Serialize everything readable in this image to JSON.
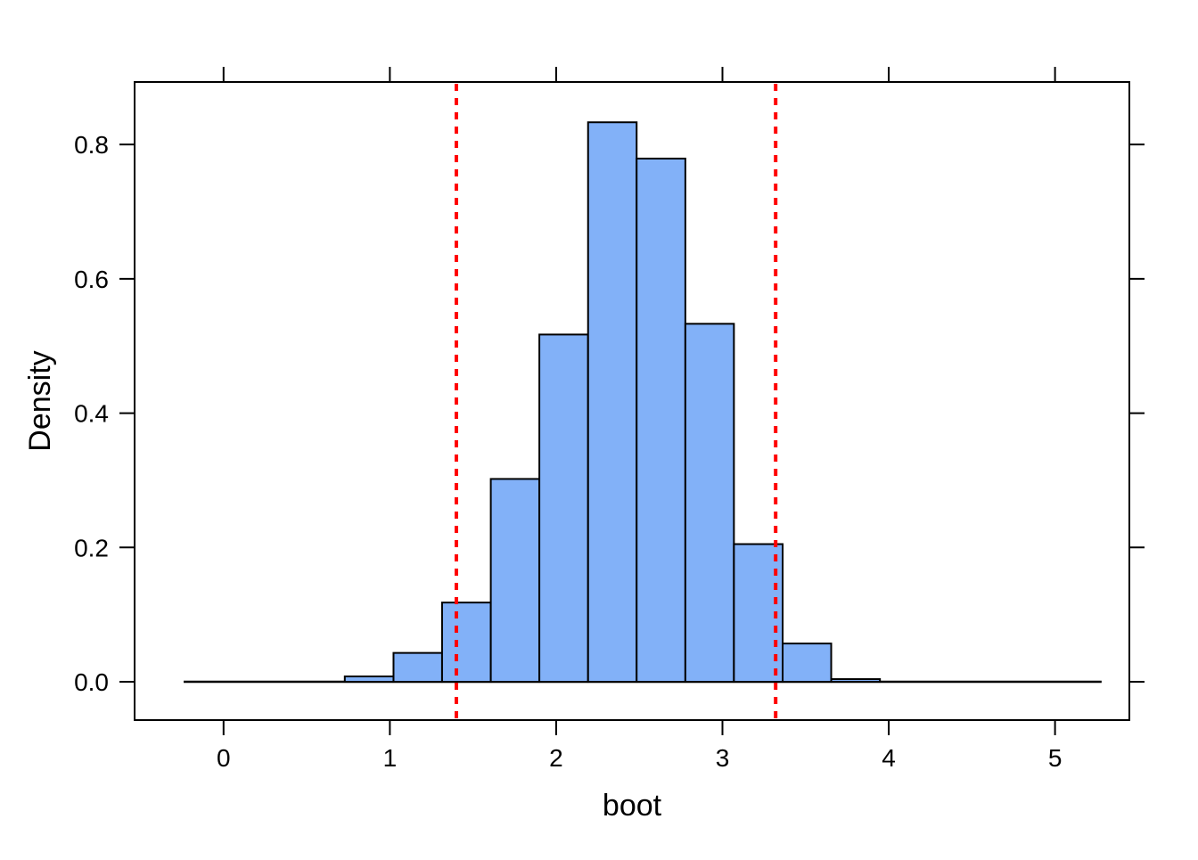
{
  "figure": {
    "background": "#ffffff"
  },
  "chart_data": {
    "type": "bar",
    "subtype": "histogram",
    "title": "",
    "xlabel": "boot",
    "ylabel": "Density",
    "grid": false,
    "legend": null,
    "x_axis": {
      "range": [
        -0.535,
        5.447
      ],
      "tick_values": [
        0,
        1,
        2,
        3,
        4,
        5
      ],
      "tick_labels": [
        "0",
        "1",
        "2",
        "3",
        "4",
        "5"
      ],
      "mirrored_ticks_top": true
    },
    "y_axis": {
      "range": [
        -0.057,
        0.893
      ],
      "tick_values": [
        0.0,
        0.2,
        0.4,
        0.6,
        0.8
      ],
      "tick_labels": [
        "0.0",
        "0.2",
        "0.4",
        "0.6",
        "0.8"
      ],
      "mirrored_ticks_right": true
    },
    "bins": {
      "breaks": [
        0.729,
        1.022,
        1.314,
        1.607,
        1.899,
        2.192,
        2.484,
        2.777,
        3.069,
        3.362,
        3.654,
        3.947
      ],
      "densities": [
        0.008,
        0.043,
        0.118,
        0.302,
        0.517,
        0.833,
        0.779,
        0.533,
        0.205,
        0.057,
        0.004
      ]
    },
    "vlines": [
      {
        "x": 1.4,
        "style": "dotted",
        "color": "#ff0000"
      },
      {
        "x": 3.32,
        "style": "dotted",
        "color": "#ff0000"
      }
    ],
    "zero_line": {
      "y": 0,
      "x_start": -0.24,
      "x_end": 5.28
    },
    "colors": {
      "bar_fill": "#82b1f8",
      "bar_border": "#000000",
      "axis": "#000000",
      "text": "#000000",
      "vline": "#ff0000"
    }
  }
}
